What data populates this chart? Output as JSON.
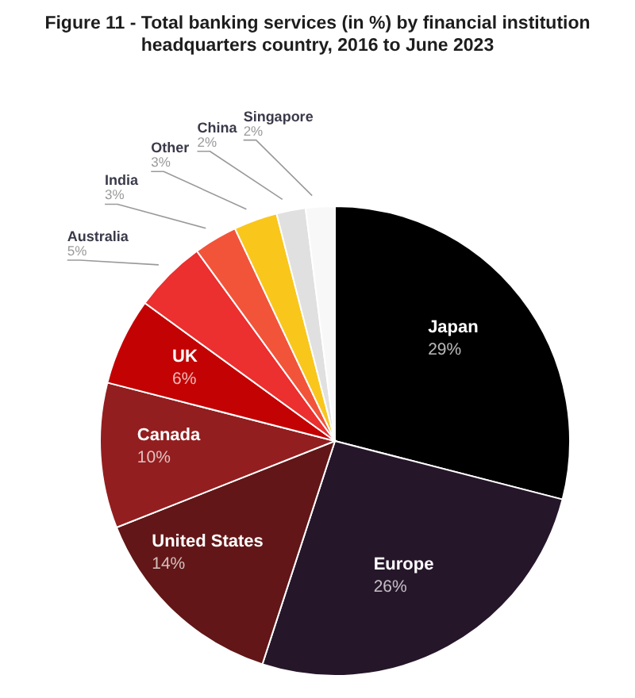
{
  "chart_data": {
    "type": "pie",
    "title": "Figure 11 - Total banking services (in %) by financial institution headquarters country, 2016 to June 2023",
    "categories": [
      "Japan",
      "Europe",
      "United States",
      "Canada",
      "UK",
      "Australia",
      "India",
      "Other",
      "China",
      "Singapore"
    ],
    "values": [
      29,
      26,
      14,
      10,
      6,
      5,
      3,
      3,
      2,
      2
    ],
    "colors": [
      "#000000",
      "#26162a",
      "#621617",
      "#931e1f",
      "#c30303",
      "#ec2f2f",
      "#f2543a",
      "#f9c61c",
      "#e0e0e0",
      "#f8f8f8"
    ],
    "value_labels": [
      "29%",
      "26%",
      "14%",
      "10%",
      "6%",
      "5%",
      "3%",
      "3%",
      "2%",
      "2%"
    ]
  }
}
